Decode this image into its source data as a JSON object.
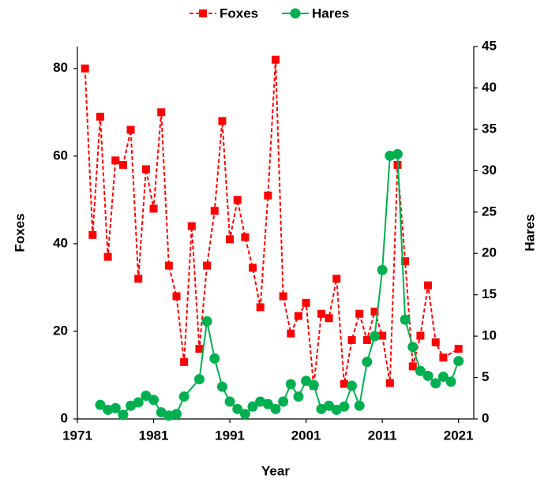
{
  "chart_data": {
    "type": "line",
    "x_label": "Year",
    "y_label": "Foxes",
    "y2_label": "Hares",
    "xlim": [
      1971,
      2023
    ],
    "xticks": [
      1971,
      1981,
      1991,
      2001,
      2011,
      2021
    ],
    "ylim": [
      0,
      85
    ],
    "yticks": [
      0,
      20,
      40,
      60,
      80
    ],
    "y2lim": [
      0,
      45
    ],
    "y2ticks": [
      0,
      5,
      10,
      15,
      20,
      25,
      30,
      35,
      40,
      45
    ],
    "legend": "top",
    "series": [
      {
        "name": "Foxes",
        "color": "#ff0000",
        "marker": "square",
        "dash": true,
        "x": [
          1972,
          1973,
          1974,
          1975,
          1976,
          1977,
          1978,
          1979,
          1980,
          1981,
          1982,
          1983,
          1984,
          1985,
          1986,
          1987,
          1988,
          1989,
          1990,
          1991,
          1992,
          1993,
          1994,
          1995,
          1996,
          1997,
          1998,
          1999,
          2000,
          2001,
          2002,
          2003,
          2004,
          2005,
          2006,
          2007,
          2008,
          2009,
          2010,
          2011,
          2012,
          2013,
          2014,
          2015,
          2016,
          2017,
          2018,
          2019,
          2021
        ],
        "values": [
          80,
          42,
          69,
          37,
          59,
          58,
          66,
          32,
          57,
          48,
          70,
          35,
          28,
          13,
          44,
          16,
          35,
          47.5,
          68,
          41,
          50,
          41.5,
          34.5,
          25.5,
          51,
          82,
          28,
          19.5,
          23.5,
          26.5,
          7.5,
          24,
          23,
          32,
          8,
          18,
          24,
          18,
          24.5,
          19,
          8.2,
          58,
          36,
          12,
          19,
          30.5,
          17.5,
          14,
          16
        ]
      },
      {
        "name": "Hares",
        "color": "#00b050",
        "marker": "circle",
        "dash": false,
        "axis": "y2",
        "x": [
          1974,
          1975,
          1976,
          1977,
          1978,
          1979,
          1980,
          1981,
          1982,
          1983,
          1984,
          1985,
          1987,
          1988,
          1989,
          1990,
          1991,
          1992,
          1993,
          1994,
          1995,
          1996,
          1997,
          1998,
          1999,
          2000,
          2001,
          2002,
          2003,
          2004,
          2005,
          2006,
          2007,
          2008,
          2009,
          2010,
          2011,
          2012,
          2013,
          2014,
          2015,
          2016,
          2017,
          2018,
          2019,
          2020,
          2021
        ],
        "values": [
          1.7,
          1.1,
          1.3,
          0.5,
          1.6,
          2,
          2.8,
          2.3,
          0.8,
          0.4,
          0.6,
          2.7,
          4.8,
          11.8,
          7.3,
          3.9,
          2.1,
          1.2,
          0.6,
          1.5,
          2.1,
          1.8,
          1.2,
          2.1,
          4.2,
          2.7,
          4.6,
          4.1,
          1.2,
          1.6,
          1.1,
          1.5,
          4,
          1.6,
          6.9,
          10,
          18,
          31.8,
          32,
          12,
          8.7,
          5.8,
          5.2,
          4.3,
          5.1,
          4.5,
          7
        ]
      }
    ]
  }
}
